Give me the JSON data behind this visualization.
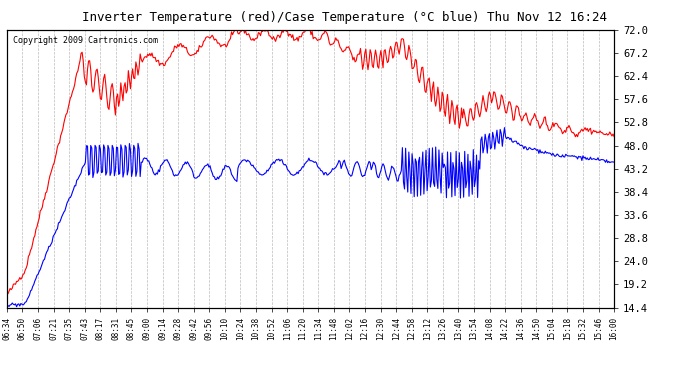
{
  "title": "Inverter Temperature (red)/Case Temperature (°C blue) Thu Nov 12 16:24",
  "copyright": "Copyright 2009 Cartronics.com",
  "ylabel_right_values": [
    14.4,
    19.2,
    24.0,
    28.8,
    33.6,
    38.4,
    43.2,
    48.0,
    52.8,
    57.6,
    62.4,
    67.2,
    72.0
  ],
  "ymin": 14.4,
  "ymax": 72.0,
  "bg_color": "#ffffff",
  "plot_bg_color": "#ffffff",
  "grid_color": "#aaaaaa",
  "x_tick_labels": [
    "06:34",
    "06:50",
    "07:06",
    "07:21",
    "07:35",
    "07:43",
    "08:17",
    "08:31",
    "08:45",
    "09:00",
    "09:14",
    "09:28",
    "09:42",
    "09:56",
    "10:10",
    "10:24",
    "10:38",
    "10:52",
    "11:06",
    "11:20",
    "11:34",
    "11:48",
    "12:02",
    "12:16",
    "12:30",
    "12:44",
    "12:58",
    "13:12",
    "13:26",
    "13:40",
    "13:54",
    "14:08",
    "14:22",
    "14:36",
    "14:50",
    "15:04",
    "15:18",
    "15:32",
    "15:46",
    "16:00"
  ],
  "red_color": "#ff0000",
  "blue_color": "#0000ff"
}
